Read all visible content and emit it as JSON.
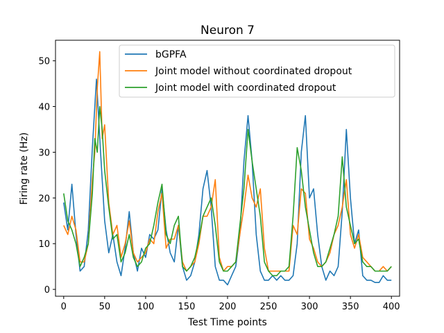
{
  "chart_data": {
    "type": "line",
    "title": "Neuron 7",
    "xlabel": "Test Time points",
    "ylabel": "Firing rate (Hz)",
    "xlim": [
      -10,
      410
    ],
    "ylim": [
      -1.5,
      54.5
    ],
    "xticks": [
      0,
      50,
      100,
      150,
      200,
      250,
      300,
      350,
      400
    ],
    "yticks": [
      0,
      10,
      20,
      30,
      40,
      50
    ],
    "grid": false,
    "legend_position": "top-right",
    "series": [
      {
        "name": "bGPFA",
        "color": "#1f77b4",
        "x": [
          0,
          5,
          10,
          15,
          20,
          25,
          30,
          35,
          40,
          45,
          50,
          55,
          60,
          65,
          70,
          75,
          80,
          85,
          90,
          95,
          100,
          105,
          110,
          115,
          120,
          125,
          130,
          135,
          140,
          145,
          150,
          155,
          160,
          165,
          170,
          175,
          180,
          185,
          190,
          195,
          200,
          205,
          210,
          215,
          220,
          225,
          230,
          235,
          240,
          245,
          250,
          255,
          260,
          265,
          270,
          275,
          280,
          285,
          290,
          295,
          300,
          305,
          310,
          315,
          320,
          325,
          330,
          335,
          340,
          345,
          350,
          355,
          360,
          365,
          370,
          375,
          380,
          385,
          390,
          395,
          400
        ],
        "values": [
          19,
          13,
          23,
          12,
          4,
          5,
          13,
          31,
          46,
          30,
          15,
          8,
          12,
          6,
          3,
          9,
          17,
          8,
          4,
          9,
          7,
          12,
          11,
          13,
          22,
          13,
          8,
          6,
          14,
          5,
          2,
          3,
          6,
          12,
          22,
          26,
          18,
          5,
          2,
          2,
          1,
          3,
          5,
          12,
          28,
          38,
          28,
          12,
          4,
          2,
          2,
          3,
          2,
          3,
          2,
          2,
          3,
          10,
          30,
          38,
          20,
          22,
          12,
          5,
          2,
          4,
          3,
          5,
          17,
          35,
          20,
          10,
          13,
          3,
          2,
          2,
          1.5,
          1.5,
          3,
          2,
          2
        ]
      },
      {
        "name": "Joint model without coordinated dropout",
        "color": "#ff7f0e",
        "x": [
          0,
          5,
          10,
          15,
          20,
          25,
          30,
          35,
          38,
          41,
          44,
          47,
          50,
          55,
          60,
          65,
          70,
          75,
          80,
          85,
          90,
          95,
          100,
          105,
          110,
          115,
          120,
          125,
          130,
          135,
          140,
          145,
          150,
          155,
          160,
          165,
          170,
          175,
          180,
          185,
          190,
          195,
          200,
          205,
          210,
          215,
          220,
          225,
          230,
          235,
          240,
          245,
          250,
          255,
          260,
          265,
          270,
          275,
          280,
          285,
          290,
          295,
          300,
          305,
          310,
          315,
          320,
          325,
          330,
          335,
          340,
          345,
          350,
          355,
          360,
          365,
          370,
          375,
          380,
          385,
          390,
          395,
          400
        ],
        "values": [
          14,
          12,
          16,
          13,
          6,
          6,
          10,
          24,
          30,
          44,
          52,
          33,
          36,
          19,
          12,
          14,
          7,
          10,
          15,
          8,
          6,
          7,
          8,
          11,
          10,
          17,
          21,
          9,
          11,
          11,
          14,
          6,
          4,
          5,
          6,
          10,
          16,
          16,
          18,
          24,
          7,
          4,
          5,
          5,
          6,
          12,
          18,
          25,
          20,
          18,
          22,
          9,
          4,
          4,
          4,
          4,
          4,
          4,
          14,
          12,
          22,
          21,
          11,
          9,
          6,
          5,
          6,
          8,
          12,
          14,
          18,
          24,
          12,
          9,
          12,
          7,
          6,
          5,
          4,
          4,
          5,
          4,
          5
        ]
      },
      {
        "name": "Joint model with coordinated dropout",
        "color": "#2ca02c",
        "x": [
          0,
          5,
          10,
          15,
          20,
          25,
          30,
          35,
          38,
          41,
          44,
          47,
          50,
          55,
          60,
          65,
          70,
          75,
          80,
          85,
          90,
          95,
          100,
          105,
          110,
          115,
          120,
          125,
          130,
          135,
          140,
          145,
          150,
          155,
          160,
          165,
          170,
          175,
          180,
          185,
          190,
          195,
          200,
          205,
          210,
          215,
          220,
          225,
          230,
          235,
          240,
          245,
          250,
          255,
          260,
          265,
          270,
          275,
          280,
          285,
          290,
          295,
          300,
          305,
          310,
          315,
          320,
          325,
          330,
          335,
          340,
          345,
          350,
          355,
          360,
          365,
          370,
          375,
          380,
          385,
          390,
          395,
          400
        ],
        "values": [
          21,
          15,
          13,
          10,
          5,
          7,
          10,
          21,
          33,
          30,
          40,
          35,
          26,
          18,
          11,
          12,
          6,
          8,
          12,
          7,
          5,
          6,
          9,
          10,
          14,
          19,
          23,
          12,
          10,
          14,
          16,
          5,
          4,
          5,
          7,
          11,
          16,
          18,
          20,
          14,
          6,
          4,
          4,
          5,
          6,
          14,
          22,
          35,
          28,
          22,
          16,
          6,
          4,
          3,
          3,
          4,
          4,
          5,
          16,
          31,
          26,
          18,
          13,
          8,
          5,
          5,
          6,
          9,
          12,
          16,
          29,
          18,
          14,
          10,
          11,
          6,
          5,
          5,
          4,
          4,
          4,
          4,
          5
        ]
      }
    ]
  }
}
